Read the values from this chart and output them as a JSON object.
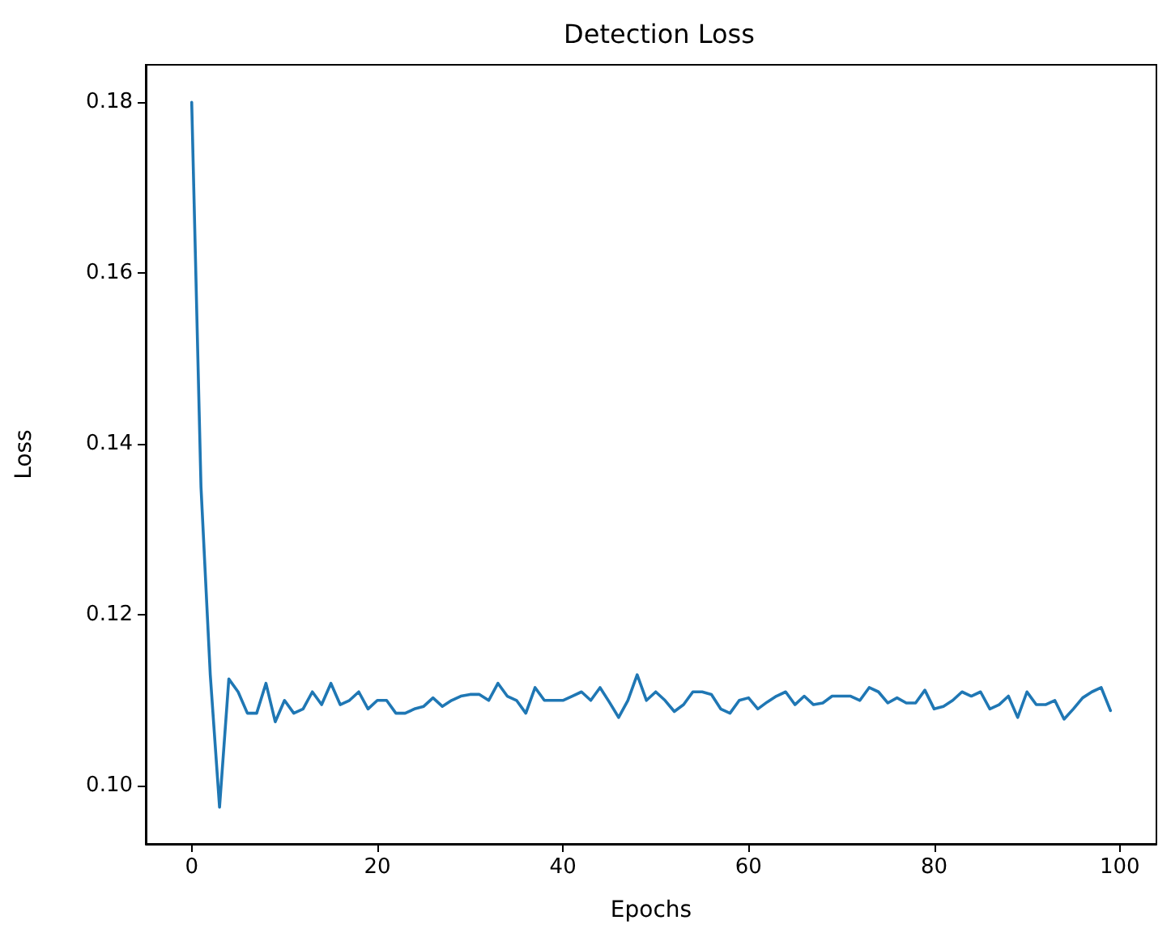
{
  "chart_data": {
    "type": "line",
    "title": "Detection Loss",
    "xlabel": "Epochs",
    "ylabel": "Loss",
    "x": [
      0,
      1,
      2,
      3,
      4,
      5,
      6,
      7,
      8,
      9,
      10,
      11,
      12,
      13,
      14,
      15,
      16,
      17,
      18,
      19,
      20,
      21,
      22,
      23,
      24,
      25,
      26,
      27,
      28,
      29,
      30,
      31,
      32,
      33,
      34,
      35,
      36,
      37,
      38,
      39,
      40,
      41,
      42,
      43,
      44,
      45,
      46,
      47,
      48,
      49,
      50,
      51,
      52,
      53,
      54,
      55,
      56,
      57,
      58,
      59,
      60,
      61,
      62,
      63,
      64,
      65,
      66,
      67,
      68,
      69,
      70,
      71,
      72,
      73,
      74,
      75,
      76,
      77,
      78,
      79,
      80,
      81,
      82,
      83,
      84,
      85,
      86,
      87,
      88,
      89,
      90,
      91,
      92,
      93,
      94,
      95,
      96,
      97,
      98,
      99
    ],
    "series": [
      {
        "color": "#1f77b4",
        "values": [
          0.18,
          0.135,
          0.113,
          0.0975,
          0.1125,
          0.111,
          0.1085,
          0.1085,
          0.112,
          0.1075,
          0.11,
          0.1085,
          0.109,
          0.111,
          0.1095,
          0.112,
          0.1095,
          0.11,
          0.111,
          0.109,
          0.11,
          0.11,
          0.1085,
          0.1085,
          0.109,
          0.1093,
          0.1103,
          0.1093,
          0.11,
          0.1105,
          0.1107,
          0.1107,
          0.11,
          0.112,
          0.1105,
          0.11,
          0.1085,
          0.1115,
          0.11,
          0.11,
          0.11,
          0.1105,
          0.111,
          0.11,
          0.1115,
          0.1098,
          0.108,
          0.11,
          0.113,
          0.11,
          0.111,
          0.11,
          0.1087,
          0.1095,
          0.111,
          0.111,
          0.1107,
          0.109,
          0.1085,
          0.11,
          0.1103,
          0.109,
          0.1098,
          0.1105,
          0.111,
          0.1095,
          0.1105,
          0.1095,
          0.1097,
          0.1105,
          0.1105,
          0.1105,
          0.11,
          0.1115,
          0.111,
          0.1097,
          0.1103,
          0.1097,
          0.1097,
          0.1112,
          0.109,
          0.1093,
          0.11,
          0.111,
          0.1105,
          0.111,
          0.109,
          0.1095,
          0.1105,
          0.108,
          0.111,
          0.1095,
          0.1095,
          0.11,
          0.1078,
          0.109,
          0.1103,
          0.111,
          0.1115,
          0.1088
        ]
      }
    ],
    "xlim": [
      -4.95,
      103.95
    ],
    "xticks": [
      0,
      20,
      40,
      60,
      80,
      100
    ],
    "ylim": [
      0.0932,
      0.1844
    ],
    "yticks": [
      {
        "value": 0.1,
        "label": "0.10"
      },
      0.12,
      0.14,
      0.16,
      0.18
    ],
    "grid": false,
    "marker": "none",
    "line_style": "solid"
  }
}
